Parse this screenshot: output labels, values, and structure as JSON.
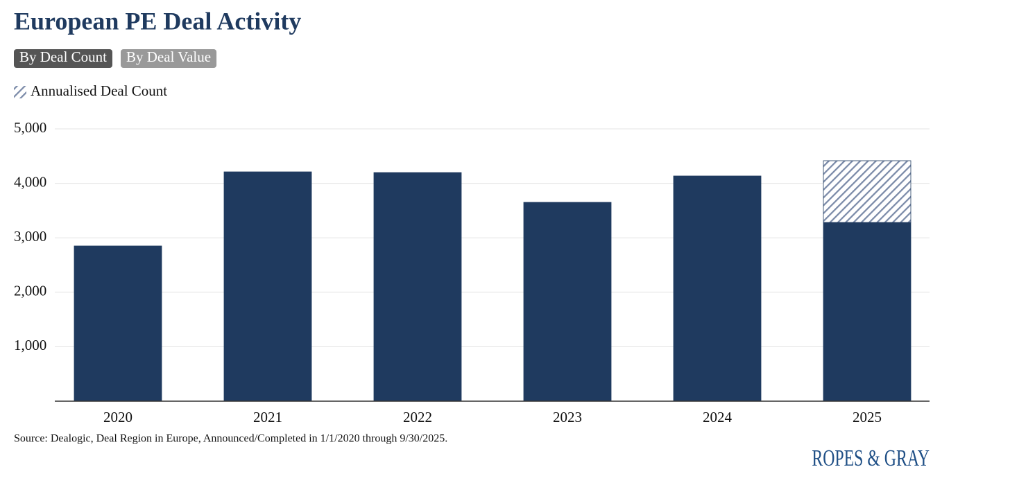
{
  "chart_data": {
    "type": "stacked-bar",
    "title": "European PE Deal Activity",
    "controls": [
      {
        "label": "By Deal Count",
        "active": true
      },
      {
        "label": "By Deal Value",
        "active": false
      }
    ],
    "categories": [
      "2020",
      "2021",
      "2022",
      "2023",
      "2024",
      "2025"
    ],
    "series": [
      {
        "color": "#1f3a5f",
        "values": [
          2850,
          4211,
          4198,
          3651,
          4135,
          3282
        ]
      },
      {
        "name": "Annualised Deal Count",
        "color": "#7a8aa8",
        "pattern": "hatch",
        "values": [
          null,
          null,
          null,
          null,
          null,
          1133
        ]
      }
    ],
    "ylim": [
      0,
      5000
    ],
    "yticks": [
      {
        "value": 1000,
        "label": "1,000"
      },
      {
        "value": 2000,
        "label": "2,000"
      },
      {
        "value": 3000,
        "label": "3,000"
      },
      {
        "value": 4000,
        "label": "4,000"
      },
      {
        "value": 5000,
        "label": "5,000"
      }
    ],
    "grid": true,
    "source": "Source: Dealogic, Deal Region in Europe, Announced/Completed in 1/1/2020 through 9/30/2025.",
    "logo": "ROPES & GRAY"
  }
}
